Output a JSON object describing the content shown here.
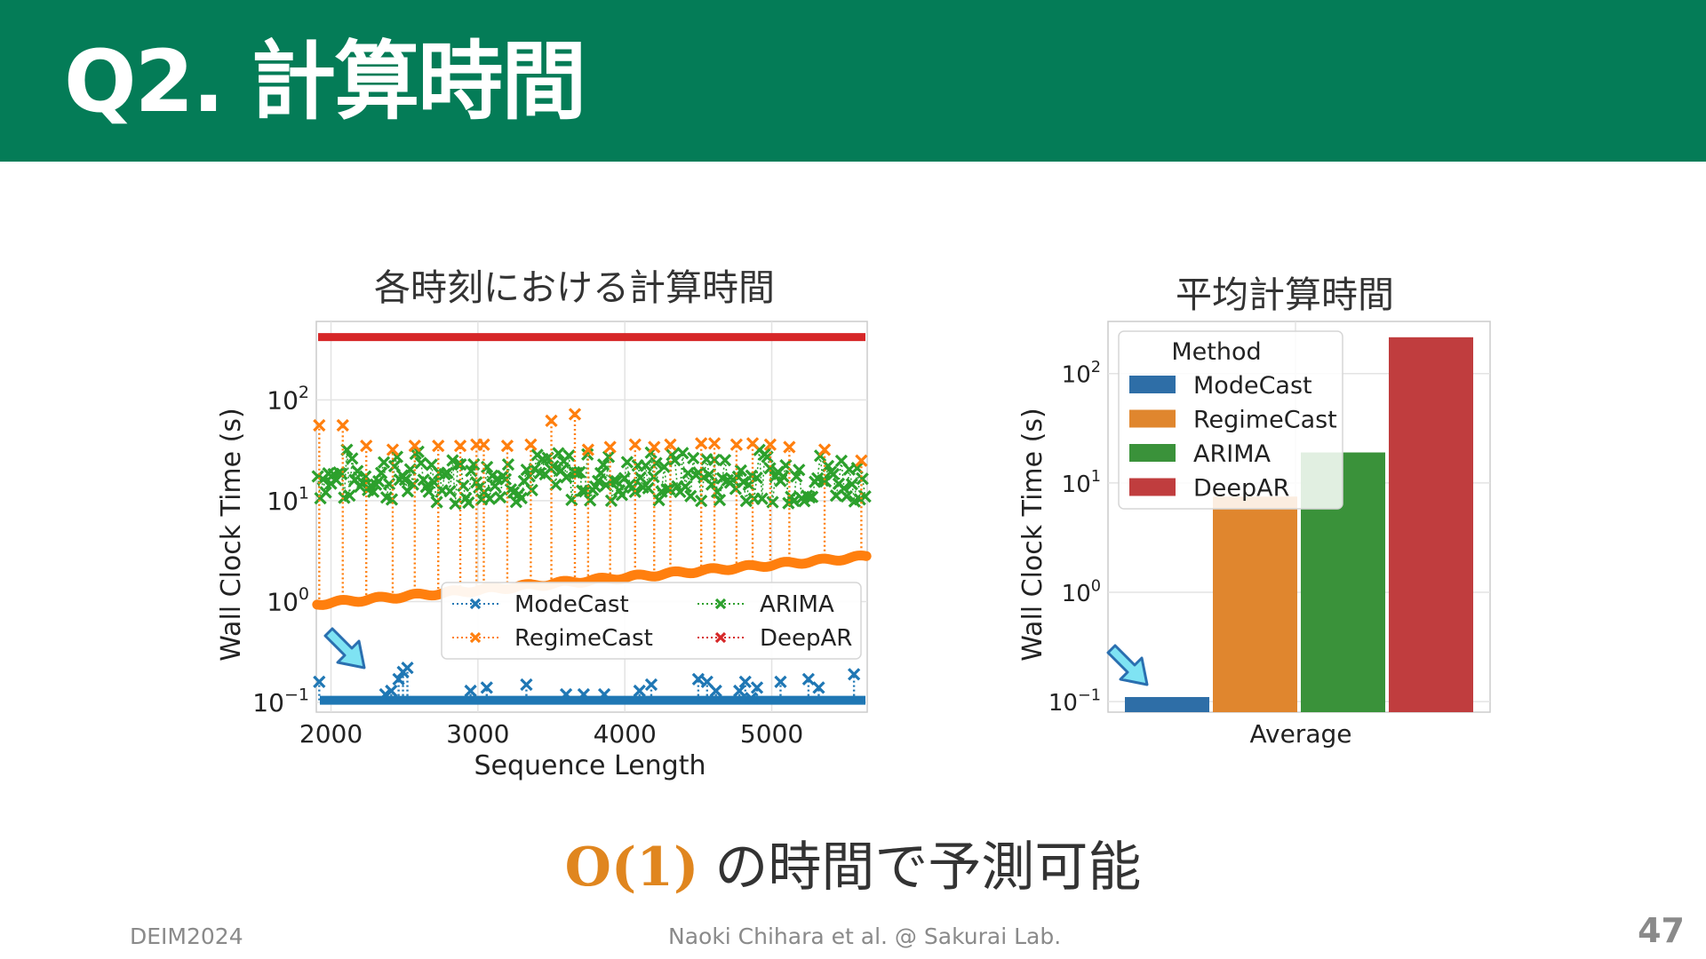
{
  "slide": {
    "title": "Q2. 計算時間",
    "conclusion_math": "O(1)",
    "conclusion_text": "の時間で予測可能",
    "footer_left": "DEIM2024",
    "footer_center": "Naoki Chihara et al. @ Sakurai Lab.",
    "page_number": "47"
  },
  "colors": {
    "header": "#047c57",
    "ModeCast": "#1f77b4",
    "RegimeCast": "#ff7f0e",
    "ARIMA": "#2ca02c",
    "DeepAR": "#d62728",
    "arrow_fill": "#7fe3f3",
    "arrow_stroke": "#2a6fb0"
  },
  "chart_data": [
    {
      "type": "scatter",
      "title": "各時刻における計算時間",
      "xlabel": "Sequence Length",
      "ylabel": "Wall Clock Time (s)",
      "yscale": "log",
      "xlim": [
        1900,
        5650
      ],
      "ylim": [
        0.08,
        600
      ],
      "xticks": [
        "2000",
        "3000",
        "4000",
        "5000"
      ],
      "yticks": [
        0.1,
        1,
        10,
        100
      ],
      "ytick_labels": [
        {
          "base": "10",
          "exp": "−1"
        },
        {
          "base": "10",
          "exp": "0"
        },
        {
          "base": "10",
          "exp": "1"
        },
        {
          "base": "10",
          "exp": "2"
        }
      ],
      "grid": true,
      "legend_position": "lower-right",
      "legend": [
        "ModeCast",
        "RegimeCast",
        "ARIMA",
        "DeepAR"
      ],
      "marker": "x",
      "linestyle": "dotted",
      "series": [
        {
          "name": "ModeCast",
          "baseline": 0.105,
          "spikes": [
            {
              "x": 1920,
              "y": 0.16
            },
            {
              "x": 2370,
              "y": 0.12
            },
            {
              "x": 2410,
              "y": 0.13
            },
            {
              "x": 2460,
              "y": 0.17
            },
            {
              "x": 2490,
              "y": 0.2
            },
            {
              "x": 2520,
              "y": 0.22
            },
            {
              "x": 2950,
              "y": 0.13
            },
            {
              "x": 3060,
              "y": 0.14
            },
            {
              "x": 3330,
              "y": 0.15
            },
            {
              "x": 3600,
              "y": 0.12
            },
            {
              "x": 3720,
              "y": 0.12
            },
            {
              "x": 3860,
              "y": 0.12
            },
            {
              "x": 4100,
              "y": 0.13
            },
            {
              "x": 4180,
              "y": 0.15
            },
            {
              "x": 4500,
              "y": 0.17
            },
            {
              "x": 4560,
              "y": 0.16
            },
            {
              "x": 4620,
              "y": 0.13
            },
            {
              "x": 4780,
              "y": 0.13
            },
            {
              "x": 4820,
              "y": 0.16
            },
            {
              "x": 4860,
              "y": 0.11
            },
            {
              "x": 4900,
              "y": 0.14
            },
            {
              "x": 5060,
              "y": 0.16
            },
            {
              "x": 5250,
              "y": 0.17
            },
            {
              "x": 5320,
              "y": 0.14
            },
            {
              "x": 5560,
              "y": 0.19
            }
          ]
        },
        {
          "name": "RegimeCast",
          "baseline_start": 0.95,
          "baseline_end": 2.8,
          "spikes": [
            {
              "x": 1920,
              "y": 56
            },
            {
              "x": 2080,
              "y": 56
            },
            {
              "x": 2240,
              "y": 35
            },
            {
              "x": 2420,
              "y": 32
            },
            {
              "x": 2570,
              "y": 35
            },
            {
              "x": 2730,
              "y": 35
            },
            {
              "x": 2880,
              "y": 35
            },
            {
              "x": 2990,
              "y": 36
            },
            {
              "x": 3040,
              "y": 36
            },
            {
              "x": 3200,
              "y": 35
            },
            {
              "x": 3360,
              "y": 36
            },
            {
              "x": 3500,
              "y": 62
            },
            {
              "x": 3660,
              "y": 72
            },
            {
              "x": 3750,
              "y": 32
            },
            {
              "x": 3900,
              "y": 34
            },
            {
              "x": 4070,
              "y": 36
            },
            {
              "x": 4200,
              "y": 34
            },
            {
              "x": 4310,
              "y": 36
            },
            {
              "x": 4520,
              "y": 37
            },
            {
              "x": 4610,
              "y": 37
            },
            {
              "x": 4760,
              "y": 36
            },
            {
              "x": 4870,
              "y": 37
            },
            {
              "x": 4990,
              "y": 36
            },
            {
              "x": 5120,
              "y": 34
            },
            {
              "x": 5360,
              "y": 32
            },
            {
              "x": 5610,
              "y": 25
            }
          ]
        },
        {
          "name": "ARIMA",
          "typical_range": [
            10,
            30
          ]
        },
        {
          "name": "DeepAR",
          "baseline": 420
        }
      ]
    },
    {
      "type": "bar",
      "title": "平均計算時間",
      "xlabel": "",
      "ylabel": "Wall Clock Time (s)",
      "yscale": "log",
      "ylim": [
        0.08,
        300
      ],
      "yticks": [
        0.1,
        1,
        10,
        100
      ],
      "ytick_labels": [
        {
          "base": "10",
          "exp": "−1"
        },
        {
          "base": "10",
          "exp": "0"
        },
        {
          "base": "10",
          "exp": "1"
        },
        {
          "base": "10",
          "exp": "2"
        }
      ],
      "categories": [
        "Average"
      ],
      "legend_title": "Method",
      "legend_position": "upper-left",
      "grid": true,
      "series": [
        {
          "name": "ModeCast",
          "values": [
            0.11
          ],
          "color": "#2e6ea7"
        },
        {
          "name": "RegimeCast",
          "values": [
            7.5
          ],
          "color": "#e0862e"
        },
        {
          "name": "ARIMA",
          "values": [
            19
          ],
          "color": "#3a923a"
        },
        {
          "name": "DeepAR",
          "values": [
            215
          ],
          "color": "#c03d3e"
        }
      ]
    }
  ]
}
